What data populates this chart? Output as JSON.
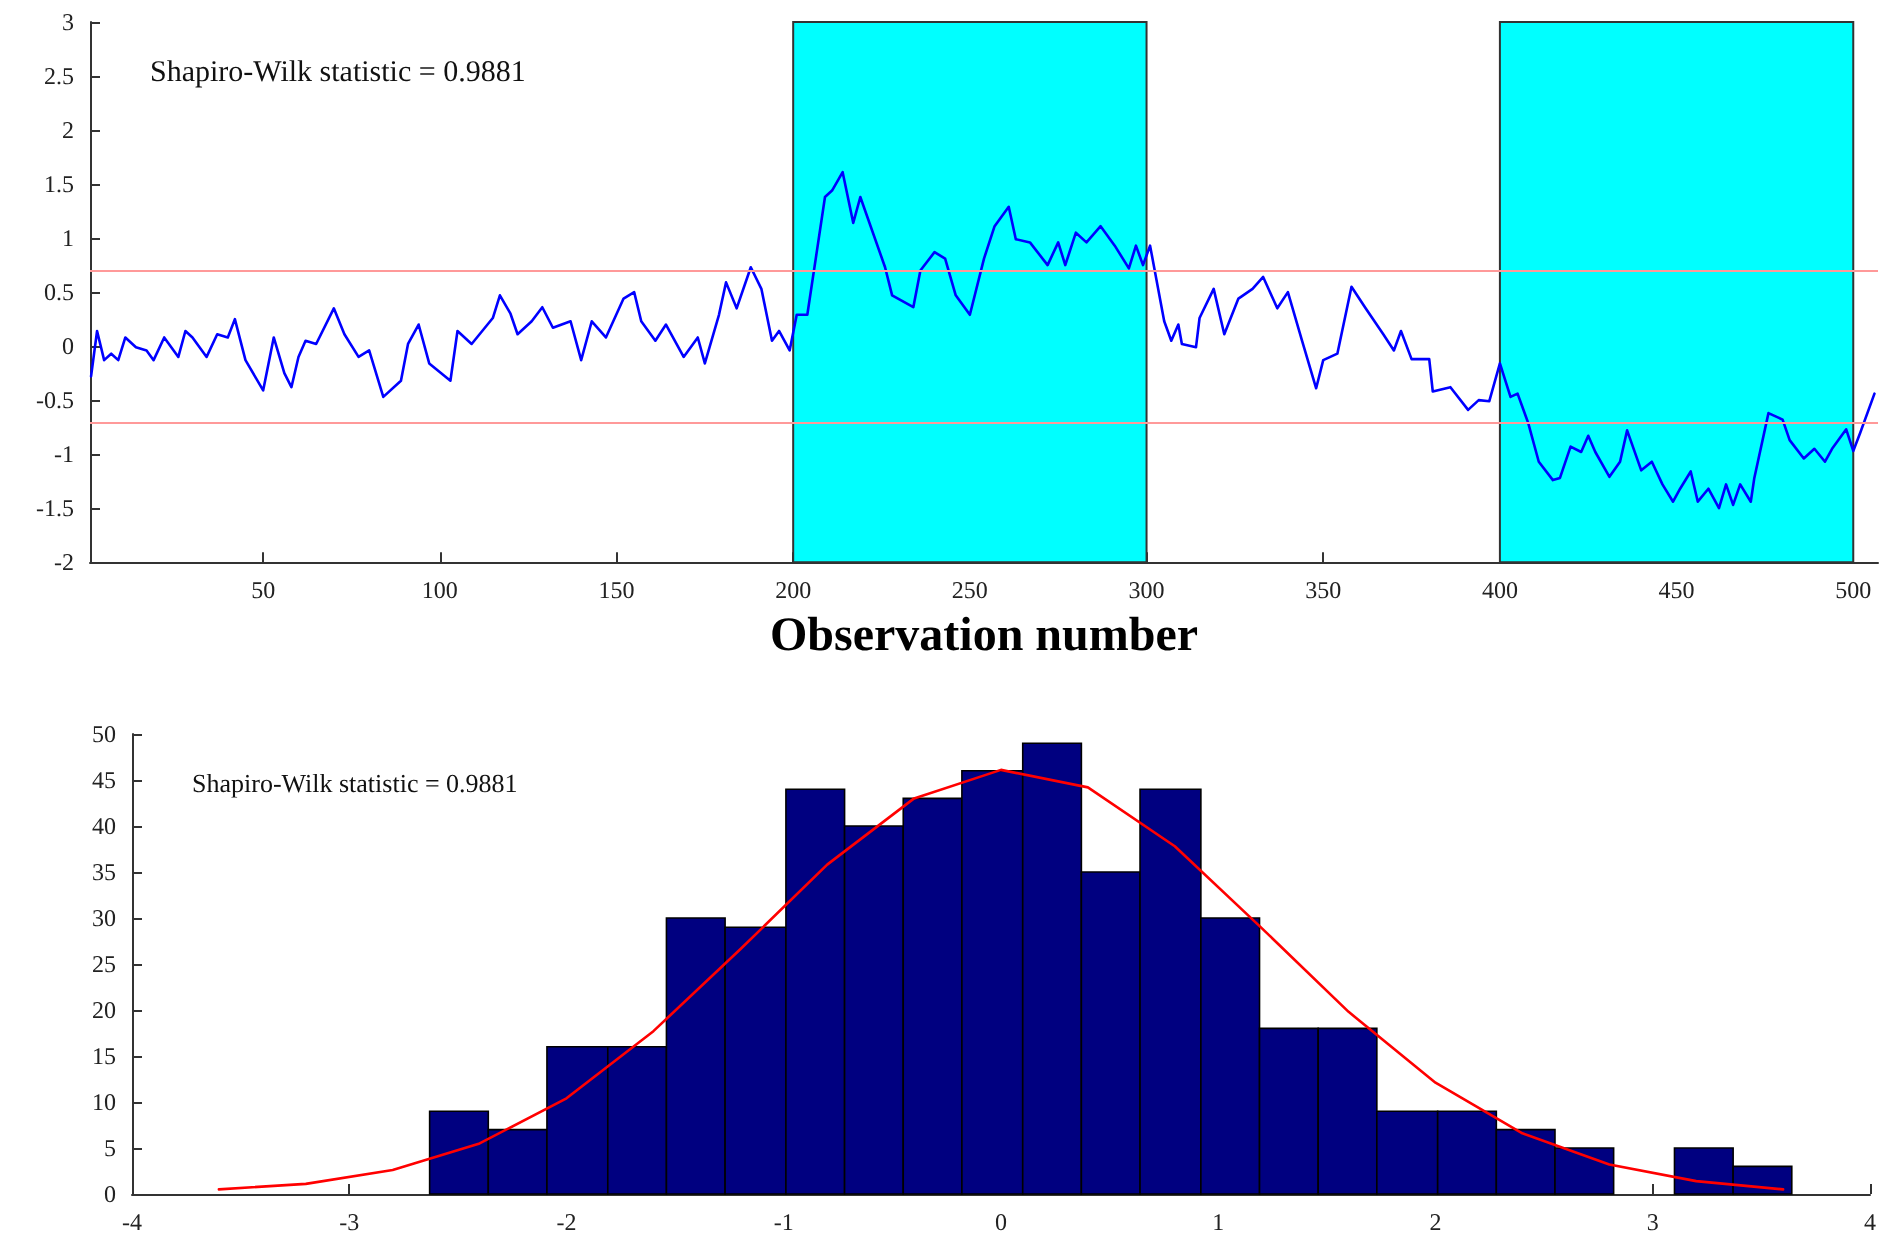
{
  "chart_data": [
    {
      "type": "line",
      "xlabel": "Observation number",
      "annotations": [
        "Shapiro-Wilk statistic = 0.9881"
      ],
      "marker": "none",
      "grid": false,
      "xlim": [
        1,
        507
      ],
      "xticks": [
        50,
        100,
        150,
        200,
        250,
        300,
        350,
        400,
        450,
        500
      ],
      "ylim": [
        -2,
        3
      ],
      "yticks": [
        -2,
        -1.5,
        -1,
        -0.5,
        0,
        0.5,
        1,
        1.5,
        2,
        2.5,
        3
      ],
      "x": [
        1.3,
        3,
        5,
        7,
        9,
        11,
        14,
        17,
        19,
        22,
        26,
        28,
        30,
        34,
        37,
        40,
        42,
        45,
        50,
        53,
        56,
        58,
        60,
        62,
        65,
        70,
        73,
        77,
        80,
        84,
        89,
        91,
        94,
        97,
        103,
        105,
        109,
        112,
        115,
        117,
        120,
        122,
        126,
        129,
        132,
        137,
        140,
        143,
        147,
        152,
        155,
        157,
        161,
        164,
        169,
        173,
        175,
        179,
        181,
        184,
        188,
        191,
        194,
        196,
        199,
        201,
        204,
        209,
        211,
        214,
        217,
        219,
        226,
        228,
        234,
        236,
        240,
        243,
        246,
        250,
        254,
        257,
        261,
        263,
        267,
        272,
        275,
        277,
        280,
        283,
        287,
        291,
        295,
        297,
        299,
        301,
        305,
        307,
        309,
        310,
        314,
        315,
        319,
        322,
        326,
        330,
        333,
        337,
        340,
        344,
        348,
        350,
        354,
        358,
        362,
        367,
        370,
        372,
        375,
        380,
        381,
        386,
        391,
        394,
        397,
        400,
        403,
        405,
        408,
        411,
        415,
        417,
        420,
        423,
        425,
        427,
        431,
        434,
        436,
        440,
        443,
        446,
        449,
        451,
        454,
        456,
        459,
        462,
        464,
        466,
        468,
        471,
        472,
        476,
        480,
        482,
        486,
        489,
        492,
        494,
        498,
        500,
        502,
        506
      ],
      "series": [
        {
          "color": "#0000ff",
          "values": [
            -0.28,
            0.14,
            -0.13,
            -0.07,
            -0.13,
            0.08,
            -0.01,
            -0.04,
            -0.13,
            0.08,
            -0.1,
            0.14,
            0.08,
            -0.1,
            0.11,
            0.08,
            0.25,
            -0.13,
            -0.41,
            0.08,
            -0.25,
            -0.38,
            -0.1,
            0.05,
            0.02,
            0.35,
            0.11,
            -0.1,
            -0.04,
            -0.47,
            -0.32,
            0.02,
            0.2,
            -0.16,
            -0.32,
            0.14,
            0.02,
            0.14,
            0.26,
            0.47,
            0.3,
            0.11,
            0.23,
            0.36,
            0.17,
            0.23,
            -0.13,
            0.23,
            0.08,
            0.44,
            0.5,
            0.23,
            0.05,
            0.2,
            -0.1,
            0.08,
            -0.16,
            0.29,
            0.59,
            0.35,
            0.73,
            0.53,
            0.05,
            0.14,
            -0.04,
            0.29,
            0.29,
            1.38,
            1.44,
            1.61,
            1.14,
            1.38,
            0.73,
            0.47,
            0.36,
            0.7,
            0.87,
            0.81,
            0.47,
            0.29,
            0.81,
            1.11,
            1.29,
            0.99,
            0.96,
            0.75,
            0.96,
            0.75,
            1.05,
            0.96,
            1.11,
            0.93,
            0.72,
            0.93,
            0.75,
            0.93,
            0.23,
            0.05,
            0.2,
            0.02,
            -0.01,
            0.26,
            0.53,
            0.11,
            0.44,
            0.53,
            0.64,
            0.35,
            0.5,
            0.05,
            -0.39,
            -0.13,
            -0.07,
            0.55,
            0.35,
            0.11,
            -0.04,
            0.14,
            -0.12,
            -0.12,
            -0.42,
            -0.38,
            -0.59,
            -0.5,
            -0.51,
            -0.16,
            -0.47,
            -0.44,
            -0.71,
            -1.07,
            -1.24,
            -1.22,
            -0.93,
            -0.98,
            -0.83,
            -0.98,
            -1.21,
            -1.07,
            -0.78,
            -1.15,
            -1.07,
            -1.28,
            -1.44,
            -1.32,
            -1.16,
            -1.44,
            -1.32,
            -1.5,
            -1.28,
            -1.47,
            -1.28,
            -1.44,
            -1.22,
            -0.62,
            -0.68,
            -0.87,
            -1.04,
            -0.95,
            -1.07,
            -0.95,
            -0.77,
            -0.97,
            -0.8,
            -0.44
          ]
        }
      ],
      "bands": [
        {
          "axis": "x",
          "from": 200,
          "to": 300,
          "color": "#00ffff"
        },
        {
          "axis": "x",
          "from": 400,
          "to": 500,
          "color": "#00ffff"
        }
      ],
      "ref_lines": [
        {
          "axis": "y",
          "value": 0.7,
          "color": "#ff9999"
        },
        {
          "axis": "y",
          "value": -0.7,
          "color": "#ff9999"
        }
      ]
    },
    {
      "type": "histogram",
      "annotations": [
        "Shapiro-Wilk statistic = 0.9881"
      ],
      "grid": false,
      "xlim": [
        -4,
        4
      ],
      "xticks": [
        -4,
        -3,
        -2,
        -1,
        0,
        1,
        2,
        3,
        4
      ],
      "ylim": [
        0,
        50
      ],
      "yticks": [
        0,
        5,
        10,
        15,
        20,
        25,
        30,
        35,
        40,
        45,
        50
      ],
      "bins": [
        -2.63,
        -2.36,
        -2.09,
        -1.81,
        -1.54,
        -1.27,
        -0.99,
        -0.72,
        -0.45,
        -0.18,
        0.1,
        0.37,
        0.64,
        0.92,
        1.19,
        1.46,
        1.73,
        2.01,
        2.28,
        2.55,
        2.82,
        3.1,
        3.37,
        3.64
      ],
      "series": [
        {
          "type": "histogram",
          "color": "#000080",
          "values": [
            9,
            7,
            16,
            16,
            30,
            29,
            44,
            40,
            43,
            46,
            49,
            35,
            44,
            30,
            18,
            18,
            9,
            9,
            7,
            5,
            0,
            5,
            3
          ]
        },
        {
          "type": "line",
          "color": "#ff0000",
          "x": [
            -3.6,
            -3.2,
            -2.8,
            -2.4,
            -2.0,
            -1.6,
            -1.2,
            -0.8,
            -0.4,
            0,
            0.4,
            0.8,
            1.2,
            1.6,
            2.0,
            2.4,
            2.8,
            3.2,
            3.6
          ],
          "values": [
            0.5,
            1.1,
            2.6,
            5.5,
            10.4,
            17.7,
            26.6,
            35.8,
            43,
            46.1,
            44.2,
            37.8,
            28.9,
            19.8,
            12.1,
            6.6,
            3.2,
            1.4,
            0.5
          ]
        }
      ]
    }
  ]
}
